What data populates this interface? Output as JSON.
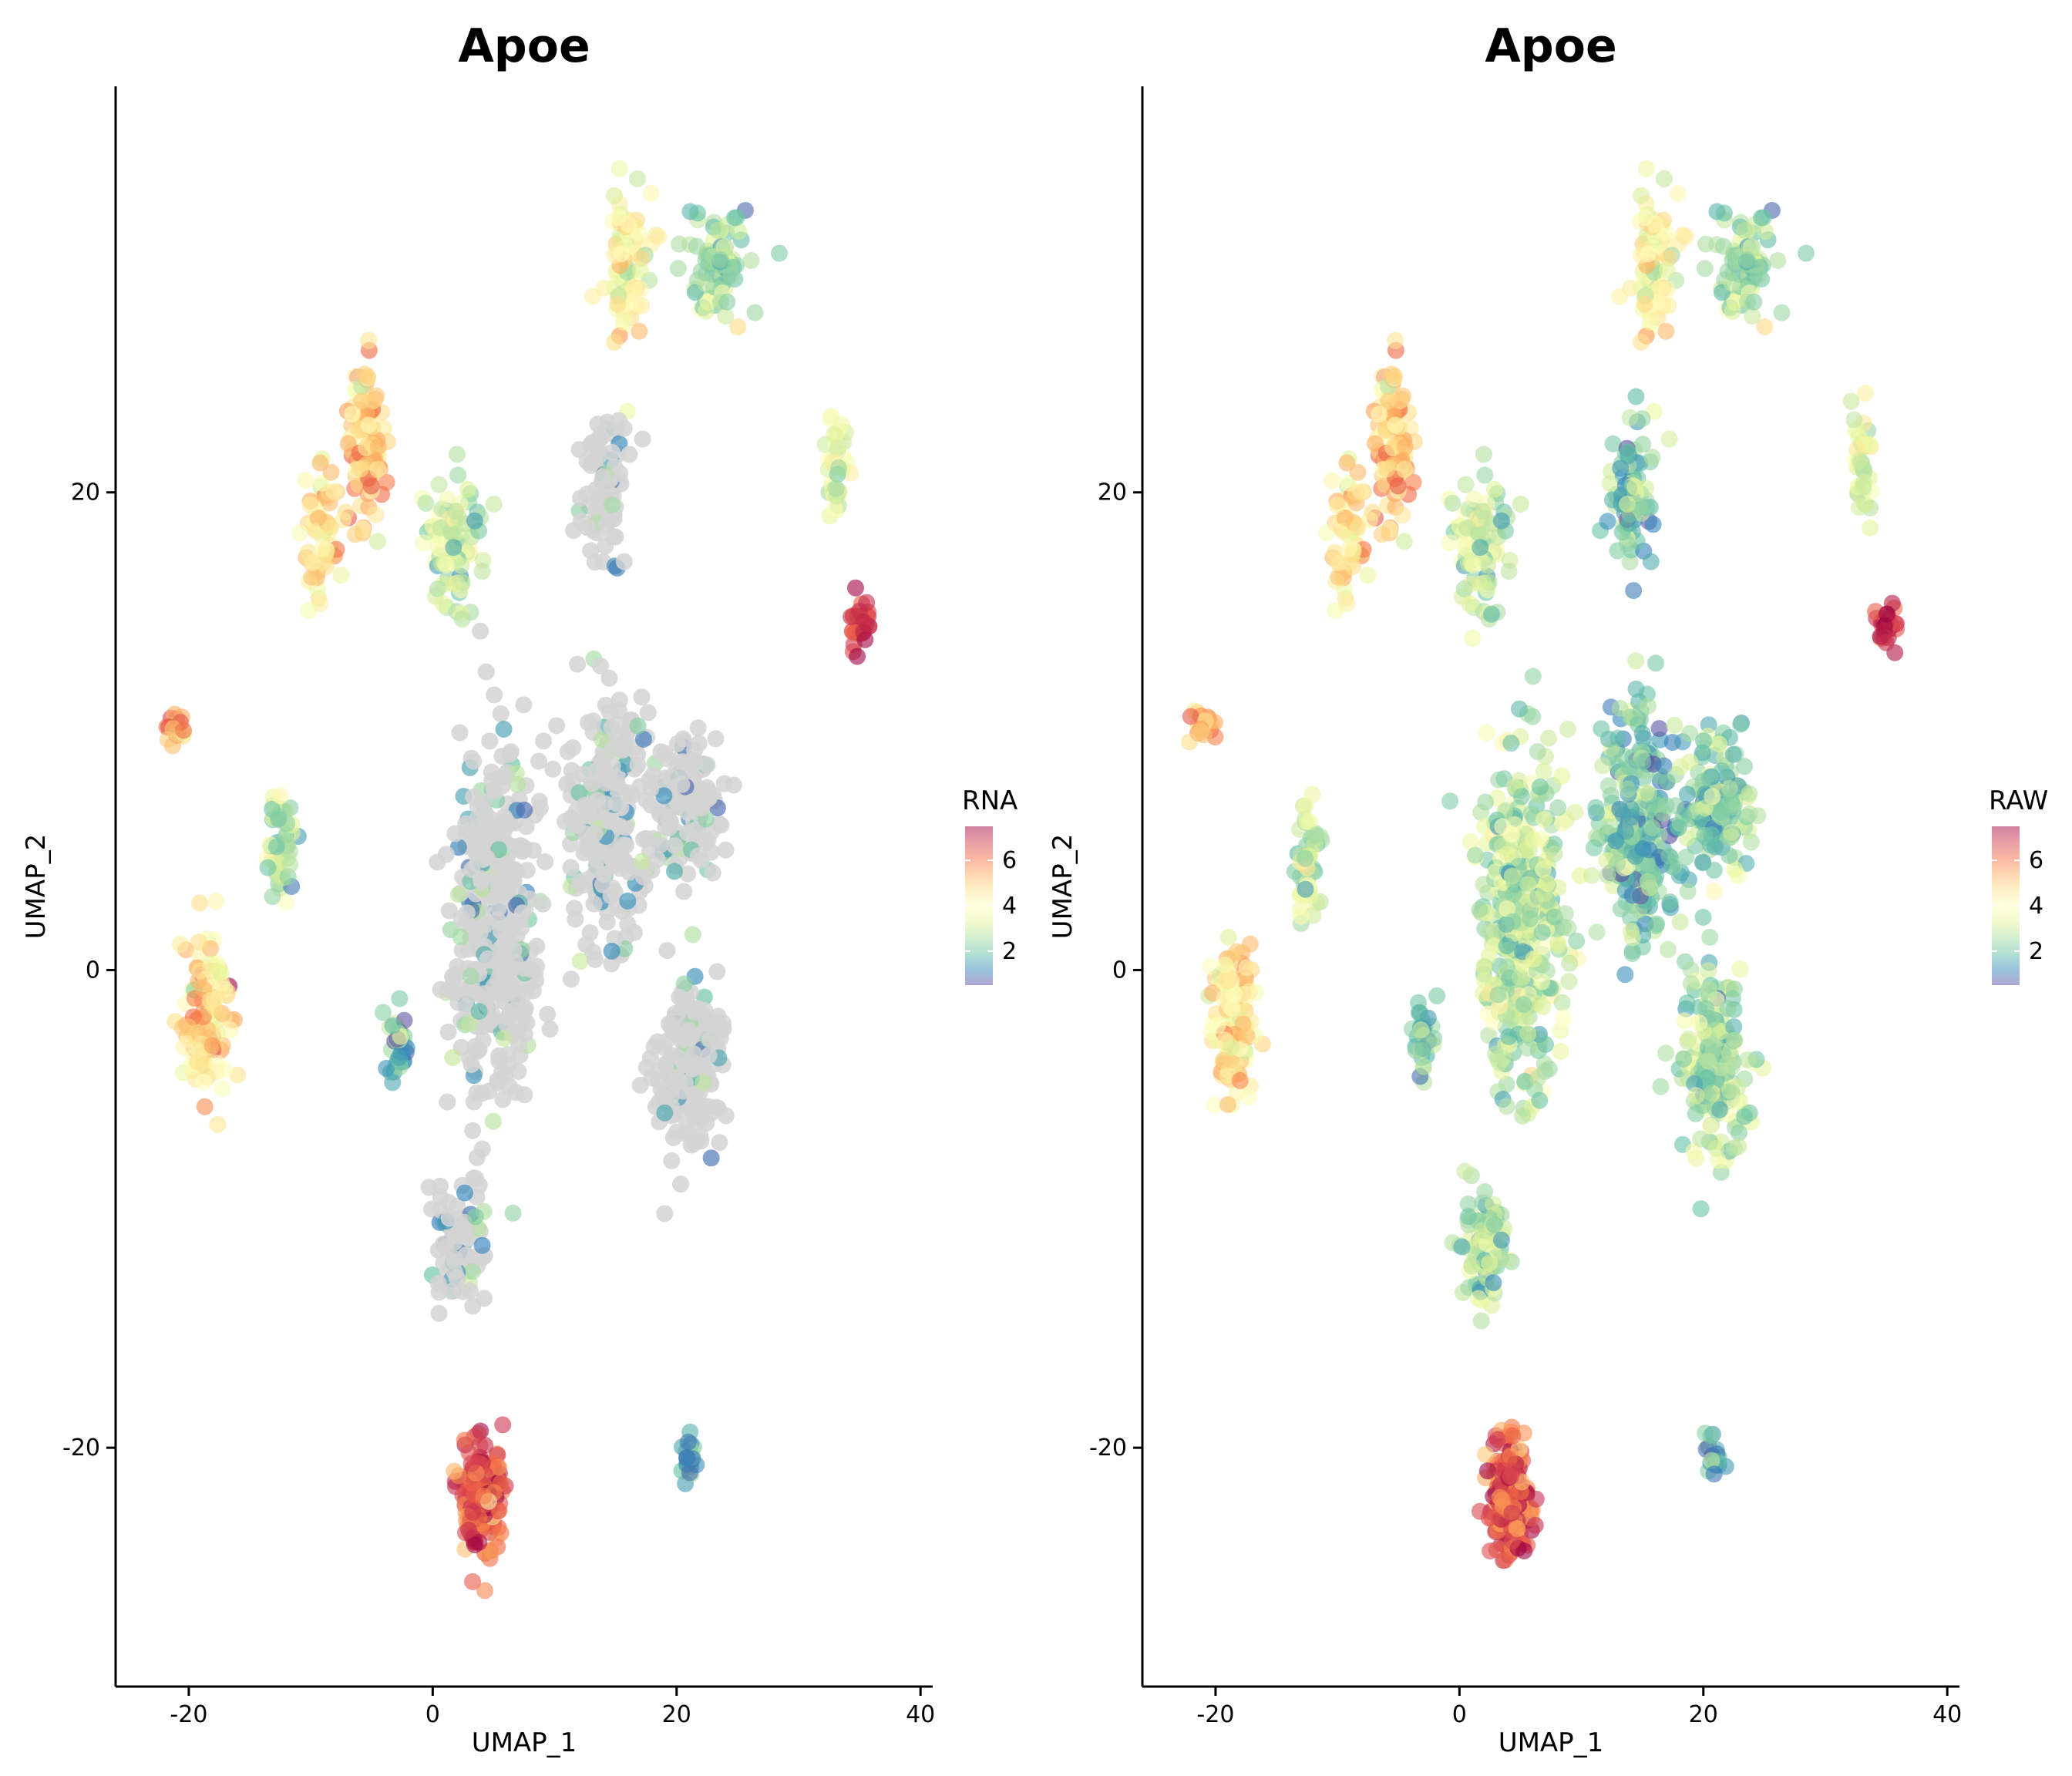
{
  "chart_data": [
    {
      "type": "scatter",
      "title": "Apoe",
      "xlabel": "UMAP_1",
      "ylabel": "UMAP_2",
      "xlim": [
        -26,
        41
      ],
      "ylim": [
        -30,
        37
      ],
      "xticks": [
        -20,
        0,
        20,
        40
      ],
      "yticks": [
        -20,
        0,
        20
      ],
      "legend": {
        "title": "RNA",
        "ticks": [
          2,
          4,
          6
        ],
        "range": [
          0.5,
          7.5
        ],
        "placement": "right"
      },
      "grid": false,
      "colorscale": "Spectral (reversed)",
      "unexpressed_color": "#d3d3d3",
      "clusters": [
        {
          "x": 23.5,
          "y": 29.5,
          "value": 2.5
        },
        {
          "x": 16.0,
          "y": 29.5,
          "value": 4.0
        },
        {
          "x": -5.5,
          "y": 22.0,
          "value": 5.0
        },
        {
          "x": -9.0,
          "y": 18.0,
          "value": 4.5
        },
        {
          "x": 1.5,
          "y": 18.0,
          "value": 3.0
        },
        {
          "x": 14.0,
          "y": 20.0,
          "value": 0.0
        },
        {
          "x": 33.0,
          "y": 21.0,
          "value": 3.5
        },
        {
          "x": 35.0,
          "y": 14.5,
          "value": 7.0
        },
        {
          "x": -21.0,
          "y": 10.0,
          "value": 5.5
        },
        {
          "x": -12.5,
          "y": 5.0,
          "value": 3.0
        },
        {
          "x": -18.5,
          "y": -2.0,
          "value": 4.5
        },
        {
          "x": 5.0,
          "y": 2.0,
          "value": 0.0
        },
        {
          "x": 14.5,
          "y": 6.0,
          "value": 0.0
        },
        {
          "x": 21.0,
          "y": 7.0,
          "value": 0.0
        },
        {
          "x": 21.0,
          "y": -4.0,
          "value": 0.0
        },
        {
          "x": -3.0,
          "y": -3.0,
          "value": 2.0
        },
        {
          "x": 2.0,
          "y": -11.5,
          "value": 0.0
        },
        {
          "x": 4.0,
          "y": -22.0,
          "value": 6.5
        },
        {
          "x": 21.0,
          "y": -20.5,
          "value": 1.5
        }
      ]
    },
    {
      "type": "scatter",
      "title": "Apoe",
      "xlabel": "UMAP_1",
      "ylabel": "UMAP_2",
      "xlim": [
        -26,
        41
      ],
      "ylim": [
        -30,
        37
      ],
      "xticks": [
        -20,
        0,
        20,
        40
      ],
      "yticks": [
        -20,
        0,
        20
      ],
      "legend": {
        "title": "RAW",
        "ticks": [
          2,
          4,
          6
        ],
        "range": [
          0.5,
          7.5
        ],
        "placement": "right"
      },
      "grid": false,
      "colorscale": "Spectral (reversed)",
      "unexpressed_color": "#d3d3d3",
      "clusters": [
        {
          "x": 23.5,
          "y": 29.5,
          "value": 2.5
        },
        {
          "x": 16.0,
          "y": 29.5,
          "value": 4.0
        },
        {
          "x": -5.5,
          "y": 22.0,
          "value": 5.0
        },
        {
          "x": -9.0,
          "y": 18.0,
          "value": 4.5
        },
        {
          "x": 1.5,
          "y": 18.0,
          "value": 3.0
        },
        {
          "x": 14.0,
          "y": 20.0,
          "value": 2.0
        },
        {
          "x": 33.0,
          "y": 21.0,
          "value": 3.5
        },
        {
          "x": 35.0,
          "y": 14.5,
          "value": 7.0
        },
        {
          "x": -21.0,
          "y": 10.0,
          "value": 5.5
        },
        {
          "x": -12.5,
          "y": 5.0,
          "value": 3.0
        },
        {
          "x": -18.5,
          "y": -2.0,
          "value": 4.5
        },
        {
          "x": 5.0,
          "y": 2.0,
          "value": 2.8
        },
        {
          "x": 14.5,
          "y": 6.0,
          "value": 2.0
        },
        {
          "x": 21.0,
          "y": 7.0,
          "value": 2.2
        },
        {
          "x": 21.0,
          "y": -4.0,
          "value": 2.6
        },
        {
          "x": -3.0,
          "y": -3.0,
          "value": 2.2
        },
        {
          "x": 2.0,
          "y": -11.5,
          "value": 2.6
        },
        {
          "x": 4.0,
          "y": -22.0,
          "value": 6.5
        },
        {
          "x": 21.0,
          "y": -20.5,
          "value": 1.5
        }
      ]
    }
  ]
}
